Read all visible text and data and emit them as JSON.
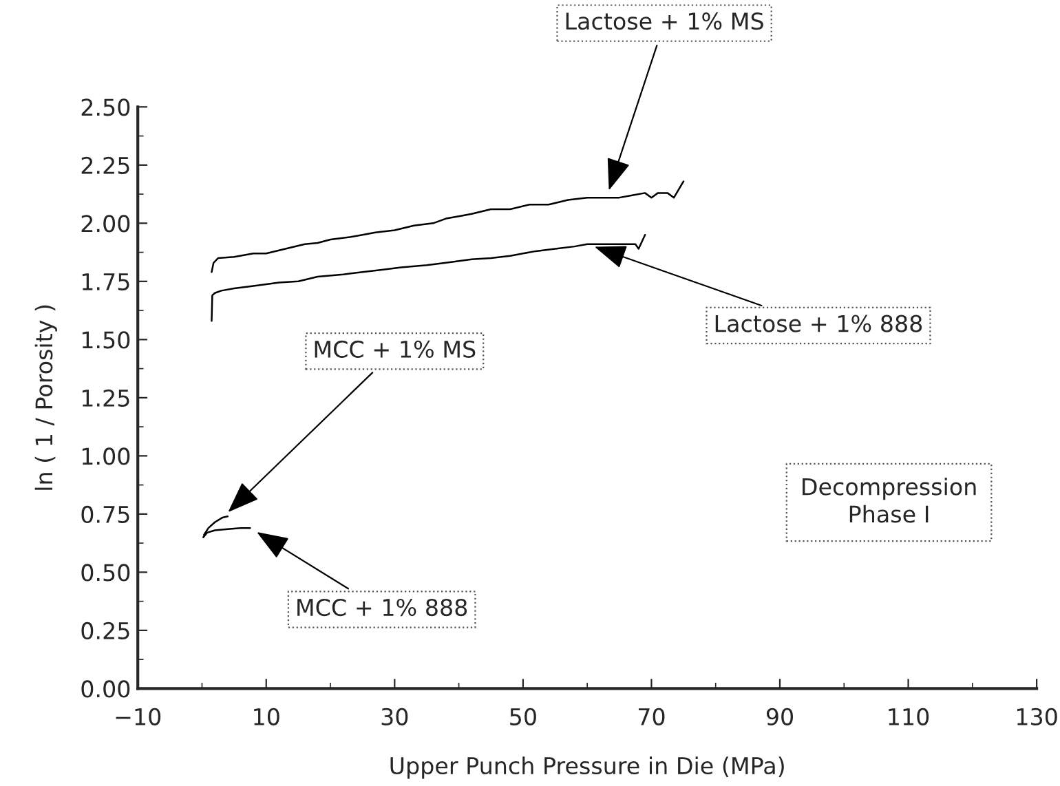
{
  "chart_data": {
    "type": "line",
    "xlabel": "Upper Punch Pressure in Die (MPa)",
    "ylabel": "ln ( 1 / Porosity )",
    "series": [
      {
        "name": "Lactose + 1% MS",
        "color": "#000000",
        "x": [
          1.5,
          1.8,
          2.5,
          5,
          8,
          10,
          13,
          16,
          18,
          20,
          23,
          25,
          27,
          30,
          33,
          36,
          38,
          40,
          42,
          45,
          48,
          51,
          54,
          57,
          60,
          63,
          65,
          67,
          69,
          70,
          71,
          72.5,
          73.5,
          75
        ],
        "values": [
          1.79,
          1.83,
          1.85,
          1.855,
          1.87,
          1.87,
          1.89,
          1.91,
          1.915,
          1.93,
          1.94,
          1.95,
          1.96,
          1.97,
          1.99,
          2.0,
          2.02,
          2.03,
          2.04,
          2.06,
          2.06,
          2.08,
          2.08,
          2.1,
          2.11,
          2.11,
          2.11,
          2.12,
          2.13,
          2.11,
          2.13,
          2.13,
          2.11,
          2.18
        ]
      },
      {
        "name": "Lactose + 1% 888",
        "color": "#000000",
        "x": [
          1.5,
          1.6,
          2,
          3,
          5,
          8,
          12,
          15,
          18,
          22,
          25,
          28,
          31,
          35,
          38,
          42,
          45,
          48,
          52,
          55,
          58,
          60,
          65,
          67.5,
          68,
          69
        ],
        "values": [
          1.58,
          1.69,
          1.7,
          1.71,
          1.72,
          1.73,
          1.745,
          1.75,
          1.77,
          1.78,
          1.79,
          1.8,
          1.81,
          1.82,
          1.83,
          1.845,
          1.85,
          1.86,
          1.88,
          1.89,
          1.9,
          1.91,
          1.91,
          1.91,
          1.89,
          1.95
        ]
      },
      {
        "name": "MCC + 1% MS",
        "color": "#000000",
        "x": [
          0.3,
          1,
          2,
          3.2,
          4
        ],
        "values": [
          0.66,
          0.69,
          0.715,
          0.735,
          0.74
        ]
      },
      {
        "name": "MCC + 1% 888",
        "color": "#000000",
        "x": [
          0.2,
          0.8,
          2,
          4,
          6,
          7.5
        ],
        "values": [
          0.65,
          0.67,
          0.68,
          0.685,
          0.69,
          0.69
        ]
      }
    ],
    "annotations": [
      "Decompression\nPhase I"
    ],
    "xlim": [
      -10,
      130
    ],
    "xticks": [
      {
        "value": -10,
        "label": "−10"
      },
      10,
      30,
      50,
      70,
      90,
      110,
      130
    ],
    "ylim": [
      0,
      2.5
    ],
    "yticks": [
      {
        "value": 0,
        "label": "0.00"
      },
      {
        "value": 0.25,
        "label": "0.25"
      },
      {
        "value": 0.5,
        "label": "0.50"
      },
      {
        "value": 0.75,
        "label": "0.75"
      },
      {
        "value": 1,
        "label": "1.00"
      },
      {
        "value": 1.25,
        "label": "1.25"
      },
      {
        "value": 1.5,
        "label": "1.50"
      },
      {
        "value": 1.75,
        "label": "1.75"
      },
      {
        "value": 2,
        "label": "2.00"
      },
      {
        "value": 2.25,
        "label": "2.25"
      },
      {
        "value": 2.5,
        "label": "2.50"
      }
    ],
    "grid": false,
    "legend": false,
    "marker": "none",
    "line_style": "solid"
  }
}
